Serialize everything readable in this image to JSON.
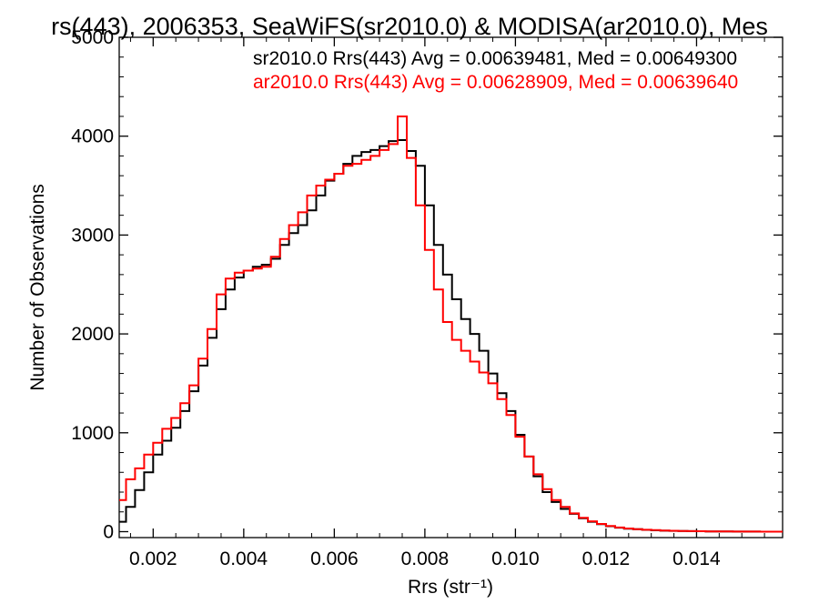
{
  "chart_data": {
    "type": "line",
    "title": "rs(443), 2006353, SeaWiFS(sr2010.0) & MODISA(ar2010.0), Mes",
    "xlabel": "Rrs (str⁻¹)",
    "ylabel": "Number of Observations",
    "xlim": [
      0.00125,
      0.0159
    ],
    "ylim": [
      -60,
      5000
    ],
    "x_ticks": [
      0.002,
      0.004,
      0.006,
      0.008,
      0.01,
      0.012,
      0.014
    ],
    "x_tick_labels": [
      "0.002",
      "0.004",
      "0.006",
      "0.008",
      "0.010",
      "0.012",
      "0.014"
    ],
    "y_ticks": [
      0,
      1000,
      2000,
      3000,
      4000,
      5000
    ],
    "y_tick_labels": [
      "0",
      "1000",
      "2000",
      "3000",
      "4000",
      "5000"
    ],
    "grid": false,
    "legend_position": "top-right",
    "series": [
      {
        "name": "sr2010.0 Rrs(443) Avg = 0.00639481, Med = 0.00649300",
        "color": "#000000",
        "x": [
          0.00125,
          0.0014,
          0.0016,
          0.0018,
          0.002,
          0.0022,
          0.0024,
          0.0026,
          0.0028,
          0.003,
          0.0032,
          0.0034,
          0.0036,
          0.0038,
          0.004,
          0.0042,
          0.0044,
          0.0046,
          0.0048,
          0.005,
          0.0052,
          0.0054,
          0.0056,
          0.0058,
          0.006,
          0.0062,
          0.0064,
          0.0066,
          0.0068,
          0.007,
          0.0072,
          0.0074,
          0.0076,
          0.0078,
          0.008,
          0.0082,
          0.0084,
          0.0086,
          0.0088,
          0.009,
          0.0092,
          0.0094,
          0.0096,
          0.0098,
          0.01,
          0.0102,
          0.0104,
          0.0106,
          0.0108,
          0.011,
          0.0112,
          0.0114,
          0.0116,
          0.0118,
          0.012,
          0.0122,
          0.0124,
          0.0126,
          0.0128,
          0.013,
          0.0132,
          0.0134,
          0.0136,
          0.0138,
          0.014,
          0.0142,
          0.0144,
          0.0146,
          0.0148,
          0.015,
          0.0152,
          0.0154,
          0.0156,
          0.0158
        ],
        "values": [
          100,
          250,
          420,
          600,
          780,
          920,
          1050,
          1220,
          1420,
          1680,
          1960,
          2250,
          2450,
          2570,
          2640,
          2680,
          2700,
          2760,
          2900,
          3020,
          3100,
          3250,
          3400,
          3550,
          3620,
          3720,
          3800,
          3840,
          3860,
          3900,
          3950,
          3960,
          3850,
          3700,
          3300,
          2900,
          2600,
          2350,
          2150,
          2000,
          1830,
          1600,
          1400,
          1220,
          980,
          760,
          560,
          400,
          300,
          230,
          180,
          135,
          100,
          75,
          55,
          40,
          30,
          25,
          18,
          14,
          10,
          8,
          6,
          5,
          4,
          3,
          2,
          2,
          1,
          1,
          1,
          0,
          0,
          0
        ]
      },
      {
        "name": "ar2010.0 Rrs(443) Avg = 0.00628909, Med = 0.00639640",
        "color": "#ff0000",
        "x": [
          0.00125,
          0.0014,
          0.0016,
          0.0018,
          0.002,
          0.0022,
          0.0024,
          0.0026,
          0.0028,
          0.003,
          0.0032,
          0.0034,
          0.0036,
          0.0038,
          0.004,
          0.0042,
          0.0044,
          0.0046,
          0.0048,
          0.005,
          0.0052,
          0.0054,
          0.0056,
          0.0058,
          0.006,
          0.0062,
          0.0064,
          0.0066,
          0.0068,
          0.007,
          0.0072,
          0.0074,
          0.0076,
          0.0078,
          0.008,
          0.0082,
          0.0084,
          0.0086,
          0.0088,
          0.009,
          0.0092,
          0.0094,
          0.0096,
          0.0098,
          0.01,
          0.0102,
          0.0104,
          0.0106,
          0.0108,
          0.011,
          0.0112,
          0.0114,
          0.0116,
          0.0118,
          0.012,
          0.0122,
          0.0124,
          0.0126,
          0.0128,
          0.013,
          0.0132,
          0.0134,
          0.0136,
          0.0138,
          0.014,
          0.0142,
          0.0144,
          0.0146,
          0.0148,
          0.015,
          0.0152,
          0.0154,
          0.0156,
          0.0158
        ],
        "values": [
          320,
          530,
          640,
          780,
          900,
          1040,
          1150,
          1300,
          1480,
          1750,
          2050,
          2400,
          2560,
          2620,
          2640,
          2660,
          2680,
          2780,
          2960,
          3100,
          3230,
          3400,
          3500,
          3560,
          3620,
          3700,
          3720,
          3760,
          3800,
          3860,
          3920,
          4200,
          3780,
          3300,
          2850,
          2450,
          2120,
          1940,
          1830,
          1720,
          1610,
          1500,
          1340,
          1180,
          960,
          760,
          580,
          430,
          320,
          250,
          185,
          140,
          105,
          78,
          58,
          42,
          32,
          25,
          19,
          15,
          11,
          9,
          7,
          5,
          4,
          3,
          2,
          2,
          1,
          1,
          1,
          0,
          0,
          0
        ]
      }
    ]
  }
}
